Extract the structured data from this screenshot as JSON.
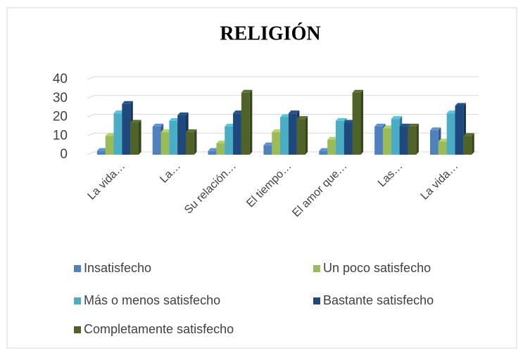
{
  "chart_data": {
    "type": "bar",
    "title": "RELIGIÓN",
    "categories": [
      "La vida…",
      "La…",
      "Su relación…",
      "El tiempo…",
      "El amor que…",
      "Las…",
      "La vida…"
    ],
    "series": [
      {
        "name": "Insatisfecho",
        "color": "#4f81bd",
        "values": [
          2,
          15,
          2,
          5,
          2,
          15,
          13
        ]
      },
      {
        "name": "Un poco satisfecho",
        "color": "#9bbb59",
        "values": [
          10,
          12,
          6,
          12,
          8,
          14,
          7
        ]
      },
      {
        "name": "Más o menos satisfecho",
        "color": "#4bacc6",
        "values": [
          22,
          18,
          15,
          20,
          18,
          19,
          22
        ]
      },
      {
        "name": "Bastante satisfecho",
        "color": "#1f497d",
        "values": [
          27,
          21,
          22,
          22,
          17,
          15,
          26
        ]
      },
      {
        "name": "Completamente satisfecho",
        "color": "#4f6228",
        "values": [
          17,
          12,
          33,
          19,
          33,
          15,
          10
        ]
      }
    ],
    "ylim": [
      0,
      40
    ],
    "yticks": [
      0,
      10,
      20,
      30,
      40
    ],
    "grid": true,
    "legend": "bottom"
  }
}
